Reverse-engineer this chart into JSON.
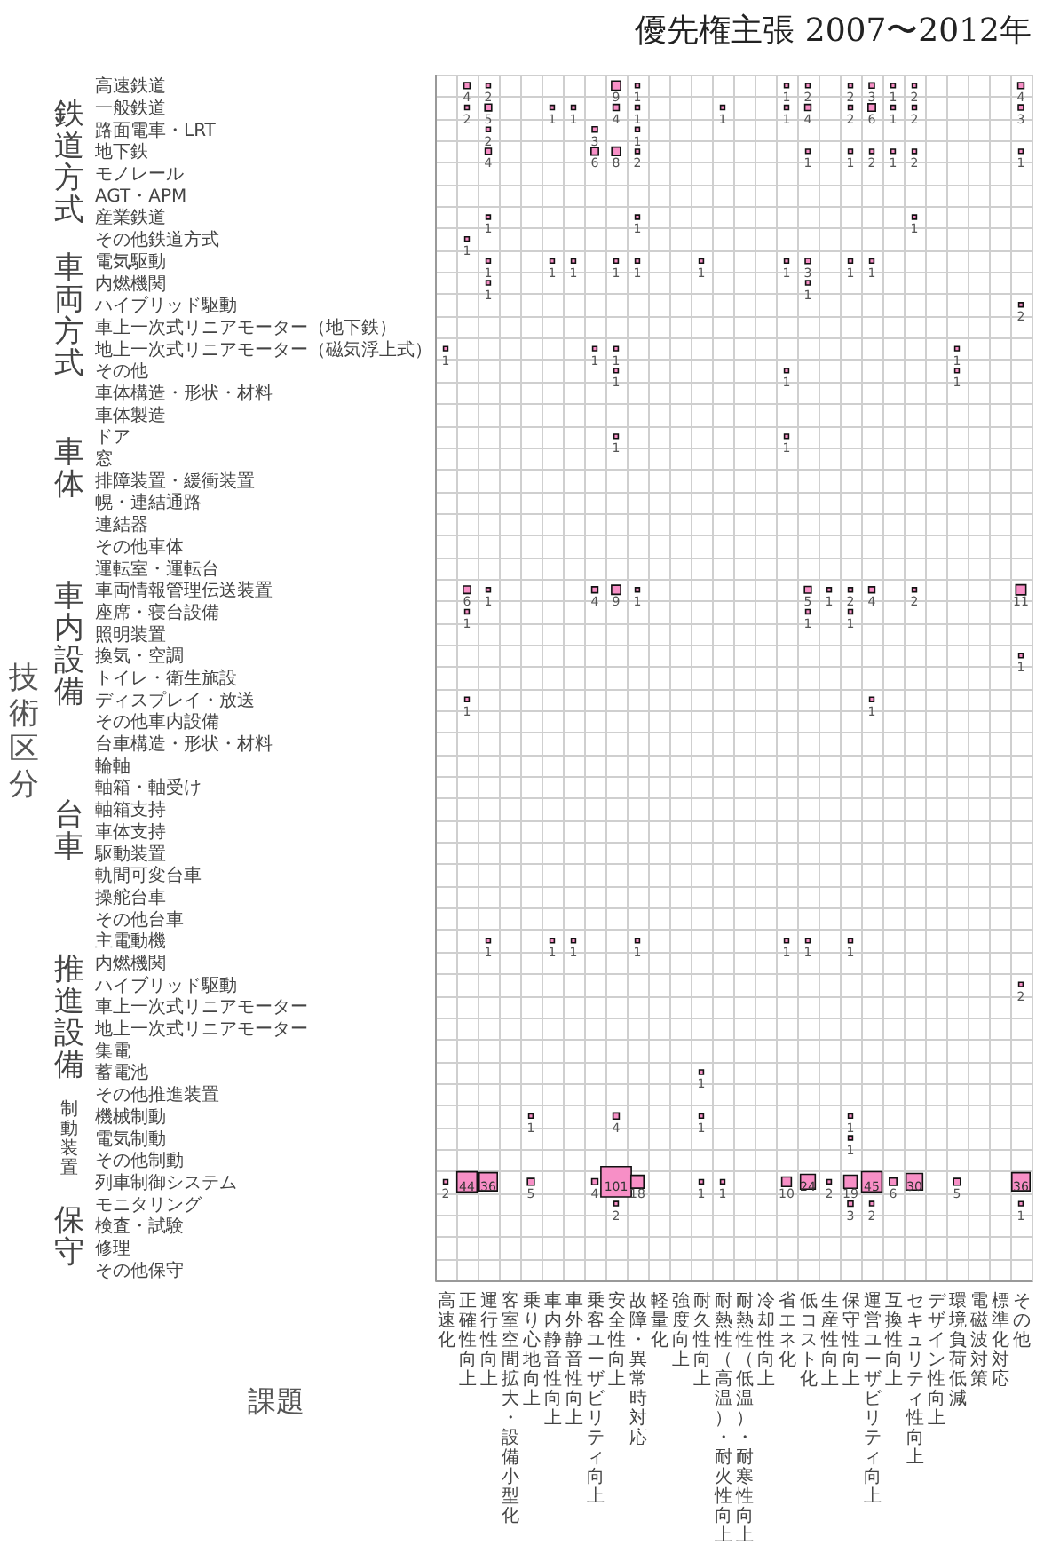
{
  "chart_data": {
    "type": "heatmap",
    "title": "優先権主張 2007〜2012年",
    "xlabel": "課題",
    "ylabel": "技術区分",
    "color": "#f78fc6",
    "data_labels": true,
    "grid": true,
    "categories": [
      "高速化",
      "正確性向上",
      "運行性向上",
      "客室空間拡大・設備小型化",
      "乗り心地向上",
      "車内静音性向上",
      "車外静音性向上",
      "乗客ユーザビリティ向上",
      "安全性向上",
      "故障・異常時対応",
      "軽量化",
      "強度向上",
      "耐久性向上",
      "耐熱性（高温）・耐火性向上",
      "耐熱性（低温）・耐寒性向上",
      "冷却性向上",
      "省エネ化",
      "低コスト化",
      "生産性向上",
      "保守性向上",
      "運営ユーザビリティ向上",
      "互換性向上",
      "セキュリティ性向上",
      "デザイン性向上",
      "環境負荷低減",
      "電磁波対策",
      "標準化対応",
      "その他"
    ],
    "y_categories": [
      "高速鉄道",
      "一般鉄道",
      "路面電車・LRT",
      "地下鉄",
      "モノレール",
      "AGT・APM",
      "産業鉄道",
      "その他鉄道方式",
      "電気駆動",
      "内燃機関",
      "ハイブリッド駆動",
      "車上一次式リニアモーター（地下鉄）",
      "地上一次式リニアモーター（磁気浮上式）",
      "その他",
      "車体構造・形状・材料",
      "車体製造",
      "ドア",
      "窓",
      "排障装置・緩衝装置",
      "幌・連結通路",
      "連結器",
      "その他車体",
      "運転室・運転台",
      "車両情報管理伝送装置",
      "座席・寝台設備",
      "照明装置",
      "換気・空調",
      "トイレ・衛生施設",
      "ディスプレイ・放送",
      "その他車内設備",
      "台車構造・形状・材料",
      "輪軸",
      "軸箱・軸受け",
      "軸箱支持",
      "車体支持",
      "駆動装置",
      "軌間可変台車",
      "操舵台車",
      "その他台車",
      "主電動機",
      "内燃機関",
      "ハイブリッド駆動",
      "車上一次式リニアモーター",
      "地上一次式リニアモーター",
      "集電",
      "蓄電池",
      "その他推進装置",
      "機械制動",
      "電気制動",
      "その他制動",
      "列車制御システム",
      "モニタリング",
      "検査・試験",
      "修理",
      "その他保守"
    ],
    "cells": [
      [
        null,
        4,
        2,
        null,
        null,
        null,
        null,
        null,
        9,
        1,
        null,
        null,
        null,
        null,
        null,
        null,
        1,
        2,
        null,
        2,
        3,
        1,
        2,
        null,
        null,
        null,
        null,
        4
      ],
      [
        null,
        2,
        5,
        null,
        null,
        1,
        1,
        null,
        4,
        1,
        null,
        null,
        null,
        1,
        null,
        null,
        1,
        4,
        null,
        2,
        6,
        1,
        2,
        null,
        null,
        null,
        null,
        3
      ],
      [
        null,
        null,
        2,
        null,
        null,
        null,
        null,
        3,
        null,
        1,
        null,
        null,
        null,
        null,
        null,
        null,
        null,
        null,
        null,
        null,
        null,
        null,
        null,
        null,
        null,
        null,
        null,
        null
      ],
      [
        null,
        null,
        4,
        null,
        null,
        null,
        null,
        6,
        8,
        2,
        null,
        null,
        null,
        null,
        null,
        null,
        null,
        1,
        null,
        1,
        2,
        1,
        2,
        null,
        null,
        null,
        null,
        1
      ],
      [
        null,
        null,
        null,
        null,
        null,
        null,
        null,
        null,
        null,
        null,
        null,
        null,
        null,
        null,
        null,
        null,
        null,
        null,
        null,
        null,
        null,
        null,
        null,
        null,
        null,
        null,
        null,
        null
      ],
      [
        null,
        null,
        null,
        null,
        null,
        null,
        null,
        null,
        null,
        null,
        null,
        null,
        null,
        null,
        null,
        null,
        null,
        null,
        null,
        null,
        null,
        null,
        null,
        null,
        null,
        null,
        null,
        null
      ],
      [
        null,
        null,
        1,
        null,
        null,
        null,
        null,
        null,
        null,
        1,
        null,
        null,
        null,
        null,
        null,
        null,
        null,
        null,
        null,
        null,
        null,
        null,
        1,
        null,
        null,
        null,
        null,
        null
      ],
      [
        null,
        1,
        null,
        null,
        null,
        null,
        null,
        null,
        null,
        null,
        null,
        null,
        null,
        null,
        null,
        null,
        null,
        null,
        null,
        null,
        null,
        null,
        null,
        null,
        null,
        null,
        null,
        null
      ],
      [
        null,
        null,
        1,
        null,
        null,
        1,
        1,
        null,
        1,
        1,
        null,
        null,
        1,
        null,
        null,
        null,
        1,
        3,
        null,
        1,
        1,
        null,
        null,
        null,
        null,
        null,
        null,
        null
      ],
      [
        null,
        null,
        1,
        null,
        null,
        null,
        null,
        null,
        null,
        null,
        null,
        null,
        null,
        null,
        null,
        null,
        null,
        1,
        null,
        null,
        null,
        null,
        null,
        null,
        null,
        null,
        null,
        null
      ],
      [
        null,
        null,
        null,
        null,
        null,
        null,
        null,
        null,
        null,
        null,
        null,
        null,
        null,
        null,
        null,
        null,
        null,
        null,
        null,
        null,
        null,
        null,
        null,
        null,
        null,
        null,
        null,
        2
      ],
      [
        null,
        null,
        null,
        null,
        null,
        null,
        null,
        null,
        null,
        null,
        null,
        null,
        null,
        null,
        null,
        null,
        null,
        null,
        null,
        null,
        null,
        null,
        null,
        null,
        null,
        null,
        null,
        null
      ],
      [
        1,
        null,
        null,
        null,
        null,
        null,
        null,
        1,
        1,
        null,
        null,
        null,
        null,
        null,
        null,
        null,
        null,
        null,
        null,
        null,
        null,
        null,
        null,
        null,
        1,
        null,
        null,
        null
      ],
      [
        null,
        null,
        null,
        null,
        null,
        null,
        null,
        null,
        1,
        null,
        null,
        null,
        null,
        null,
        null,
        null,
        1,
        null,
        null,
        null,
        null,
        null,
        null,
        null,
        1,
        null,
        null,
        null
      ],
      [
        null,
        null,
        null,
        null,
        null,
        null,
        null,
        null,
        null,
        null,
        null,
        null,
        null,
        null,
        null,
        null,
        null,
        null,
        null,
        null,
        null,
        null,
        null,
        null,
        null,
        null,
        null,
        null
      ],
      [
        null,
        null,
        null,
        null,
        null,
        null,
        null,
        null,
        null,
        null,
        null,
        null,
        null,
        null,
        null,
        null,
        null,
        null,
        null,
        null,
        null,
        null,
        null,
        null,
        null,
        null,
        null,
        null
      ],
      [
        null,
        null,
        null,
        null,
        null,
        null,
        null,
        null,
        1,
        null,
        null,
        null,
        null,
        null,
        null,
        null,
        1,
        null,
        null,
        null,
        null,
        null,
        null,
        null,
        null,
        null,
        null,
        null
      ],
      [
        null,
        null,
        null,
        null,
        null,
        null,
        null,
        null,
        null,
        null,
        null,
        null,
        null,
        null,
        null,
        null,
        null,
        null,
        null,
        null,
        null,
        null,
        null,
        null,
        null,
        null,
        null,
        null
      ],
      [
        null,
        null,
        null,
        null,
        null,
        null,
        null,
        null,
        null,
        null,
        null,
        null,
        null,
        null,
        null,
        null,
        null,
        null,
        null,
        null,
        null,
        null,
        null,
        null,
        null,
        null,
        null,
        null
      ],
      [
        null,
        null,
        null,
        null,
        null,
        null,
        null,
        null,
        null,
        null,
        null,
        null,
        null,
        null,
        null,
        null,
        null,
        null,
        null,
        null,
        null,
        null,
        null,
        null,
        null,
        null,
        null,
        null
      ],
      [
        null,
        null,
        null,
        null,
        null,
        null,
        null,
        null,
        null,
        null,
        null,
        null,
        null,
        null,
        null,
        null,
        null,
        null,
        null,
        null,
        null,
        null,
        null,
        null,
        null,
        null,
        null,
        null
      ],
      [
        null,
        null,
        null,
        null,
        null,
        null,
        null,
        null,
        null,
        null,
        null,
        null,
        null,
        null,
        null,
        null,
        null,
        null,
        null,
        null,
        null,
        null,
        null,
        null,
        null,
        null,
        null,
        null
      ],
      [
        null,
        null,
        null,
        null,
        null,
        null,
        null,
        null,
        null,
        null,
        null,
        null,
        null,
        null,
        null,
        null,
        null,
        null,
        null,
        null,
        null,
        null,
        null,
        null,
        null,
        null,
        null,
        null
      ],
      [
        null,
        6,
        1,
        null,
        null,
        null,
        null,
        4,
        9,
        1,
        null,
        null,
        null,
        null,
        null,
        null,
        null,
        5,
        1,
        2,
        4,
        null,
        2,
        null,
        null,
        null,
        null,
        11
      ],
      [
        null,
        1,
        null,
        null,
        null,
        null,
        null,
        null,
        null,
        null,
        null,
        null,
        null,
        null,
        null,
        null,
        null,
        1,
        null,
        1,
        null,
        null,
        null,
        null,
        null,
        null,
        null,
        null
      ],
      [
        null,
        null,
        null,
        null,
        null,
        null,
        null,
        null,
        null,
        null,
        null,
        null,
        null,
        null,
        null,
        null,
        null,
        null,
        null,
        null,
        null,
        null,
        null,
        null,
        null,
        null,
        null,
        null
      ],
      [
        null,
        null,
        null,
        null,
        null,
        null,
        null,
        null,
        null,
        null,
        null,
        null,
        null,
        null,
        null,
        null,
        null,
        null,
        null,
        null,
        null,
        null,
        null,
        null,
        null,
        null,
        null,
        1
      ],
      [
        null,
        null,
        null,
        null,
        null,
        null,
        null,
        null,
        null,
        null,
        null,
        null,
        null,
        null,
        null,
        null,
        null,
        null,
        null,
        null,
        null,
        null,
        null,
        null,
        null,
        null,
        null,
        null
      ],
      [
        null,
        1,
        null,
        null,
        null,
        null,
        null,
        null,
        null,
        null,
        null,
        null,
        null,
        null,
        null,
        null,
        null,
        null,
        null,
        null,
        1,
        null,
        null,
        null,
        null,
        null,
        null,
        null
      ],
      [
        null,
        null,
        null,
        null,
        null,
        null,
        null,
        null,
        null,
        null,
        null,
        null,
        null,
        null,
        null,
        null,
        null,
        null,
        null,
        null,
        null,
        null,
        null,
        null,
        null,
        null,
        null,
        null
      ],
      [
        null,
        null,
        null,
        null,
        null,
        null,
        null,
        null,
        null,
        null,
        null,
        null,
        null,
        null,
        null,
        null,
        null,
        null,
        null,
        null,
        null,
        null,
        null,
        null,
        null,
        null,
        null,
        null
      ],
      [
        null,
        null,
        null,
        null,
        null,
        null,
        null,
        null,
        null,
        null,
        null,
        null,
        null,
        null,
        null,
        null,
        null,
        null,
        null,
        null,
        null,
        null,
        null,
        null,
        null,
        null,
        null,
        null
      ],
      [
        null,
        null,
        null,
        null,
        null,
        null,
        null,
        null,
        null,
        null,
        null,
        null,
        null,
        null,
        null,
        null,
        null,
        null,
        null,
        null,
        null,
        null,
        null,
        null,
        null,
        null,
        null,
        null
      ],
      [
        null,
        null,
        null,
        null,
        null,
        null,
        null,
        null,
        null,
        null,
        null,
        null,
        null,
        null,
        null,
        null,
        null,
        null,
        null,
        null,
        null,
        null,
        null,
        null,
        null,
        null,
        null,
        null
      ],
      [
        null,
        null,
        null,
        null,
        null,
        null,
        null,
        null,
        null,
        null,
        null,
        null,
        null,
        null,
        null,
        null,
        null,
        null,
        null,
        null,
        null,
        null,
        null,
        null,
        null,
        null,
        null,
        null
      ],
      [
        null,
        null,
        null,
        null,
        null,
        null,
        null,
        null,
        null,
        null,
        null,
        null,
        null,
        null,
        null,
        null,
        null,
        null,
        null,
        null,
        null,
        null,
        null,
        null,
        null,
        null,
        null,
        null
      ],
      [
        null,
        null,
        null,
        null,
        null,
        null,
        null,
        null,
        null,
        null,
        null,
        null,
        null,
        null,
        null,
        null,
        null,
        null,
        null,
        null,
        null,
        null,
        null,
        null,
        null,
        null,
        null,
        null
      ],
      [
        null,
        null,
        null,
        null,
        null,
        null,
        null,
        null,
        null,
        null,
        null,
        null,
        null,
        null,
        null,
        null,
        null,
        null,
        null,
        null,
        null,
        null,
        null,
        null,
        null,
        null,
        null,
        null
      ],
      [
        null,
        null,
        null,
        null,
        null,
        null,
        null,
        null,
        null,
        null,
        null,
        null,
        null,
        null,
        null,
        null,
        null,
        null,
        null,
        null,
        null,
        null,
        null,
        null,
        null,
        null,
        null,
        null
      ],
      [
        null,
        null,
        1,
        null,
        null,
        1,
        1,
        null,
        null,
        1,
        null,
        null,
        null,
        null,
        null,
        null,
        1,
        1,
        null,
        1,
        null,
        null,
        null,
        null,
        null,
        null,
        null,
        null
      ],
      [
        null,
        null,
        null,
        null,
        null,
        null,
        null,
        null,
        null,
        null,
        null,
        null,
        null,
        null,
        null,
        null,
        null,
        null,
        null,
        null,
        null,
        null,
        null,
        null,
        null,
        null,
        null,
        null
      ],
      [
        null,
        null,
        null,
        null,
        null,
        null,
        null,
        null,
        null,
        null,
        null,
        null,
        null,
        null,
        null,
        null,
        null,
        null,
        null,
        null,
        null,
        null,
        null,
        null,
        null,
        null,
        null,
        2
      ],
      [
        null,
        null,
        null,
        null,
        null,
        null,
        null,
        null,
        null,
        null,
        null,
        null,
        null,
        null,
        null,
        null,
        null,
        null,
        null,
        null,
        null,
        null,
        null,
        null,
        null,
        null,
        null,
        null
      ],
      [
        null,
        null,
        null,
        null,
        null,
        null,
        null,
        null,
        null,
        null,
        null,
        null,
        null,
        null,
        null,
        null,
        null,
        null,
        null,
        null,
        null,
        null,
        null,
        null,
        null,
        null,
        null,
        null
      ],
      [
        null,
        null,
        null,
        null,
        null,
        null,
        null,
        null,
        null,
        null,
        null,
        null,
        null,
        null,
        null,
        null,
        null,
        null,
        null,
        null,
        null,
        null,
        null,
        null,
        null,
        null,
        null,
        null
      ],
      [
        null,
        null,
        null,
        null,
        null,
        null,
        null,
        null,
        null,
        null,
        null,
        null,
        1,
        null,
        null,
        null,
        null,
        null,
        null,
        null,
        null,
        null,
        null,
        null,
        null,
        null,
        null,
        null
      ],
      [
        null,
        null,
        null,
        null,
        null,
        null,
        null,
        null,
        null,
        null,
        null,
        null,
        null,
        null,
        null,
        null,
        null,
        null,
        null,
        null,
        null,
        null,
        null,
        null,
        null,
        null,
        null,
        null
      ],
      [
        null,
        null,
        null,
        null,
        1,
        null,
        null,
        null,
        4,
        null,
        null,
        null,
        1,
        null,
        null,
        null,
        null,
        null,
        null,
        1,
        null,
        null,
        null,
        null,
        null,
        null,
        null,
        null
      ],
      [
        null,
        null,
        null,
        null,
        null,
        null,
        null,
        null,
        null,
        null,
        null,
        null,
        null,
        null,
        null,
        null,
        null,
        null,
        null,
        1,
        null,
        null,
        null,
        null,
        null,
        null,
        null,
        null
      ],
      [
        null,
        null,
        null,
        null,
        null,
        null,
        null,
        null,
        null,
        null,
        null,
        null,
        null,
        null,
        null,
        null,
        null,
        null,
        null,
        null,
        null,
        null,
        null,
        null,
        null,
        null,
        null,
        null
      ],
      [
        2,
        44,
        36,
        null,
        5,
        null,
        null,
        4,
        101,
        18,
        null,
        null,
        1,
        1,
        null,
        null,
        10,
        24,
        2,
        19,
        45,
        6,
        30,
        null,
        5,
        null,
        null,
        36
      ],
      [
        null,
        null,
        null,
        null,
        null,
        null,
        null,
        null,
        2,
        null,
        null,
        null,
        null,
        null,
        null,
        null,
        null,
        null,
        null,
        3,
        2,
        null,
        null,
        null,
        null,
        null,
        null,
        1
      ],
      [
        null,
        null,
        null,
        null,
        null,
        null,
        null,
        null,
        null,
        null,
        null,
        null,
        null,
        null,
        null,
        null,
        null,
        null,
        null,
        null,
        null,
        null,
        null,
        null,
        null,
        null,
        null,
        null
      ],
      [
        null,
        null,
        null,
        null,
        null,
        null,
        null,
        null,
        null,
        null,
        null,
        null,
        null,
        null,
        null,
        null,
        null,
        null,
        null,
        null,
        null,
        null,
        null,
        null,
        null,
        null,
        null,
        null
      ],
      [
        null,
        null,
        null,
        null,
        null,
        null,
        null,
        null,
        null,
        null,
        null,
        null,
        null,
        null,
        null,
        null,
        null,
        null,
        null,
        null,
        null,
        null,
        null,
        null,
        null,
        null,
        null,
        null
      ]
    ],
    "annotations": [
      "鉄道方式",
      "車両方式",
      "車体",
      "車内設備",
      "台車",
      "推進設備",
      "制動装置",
      "保守"
    ]
  }
}
